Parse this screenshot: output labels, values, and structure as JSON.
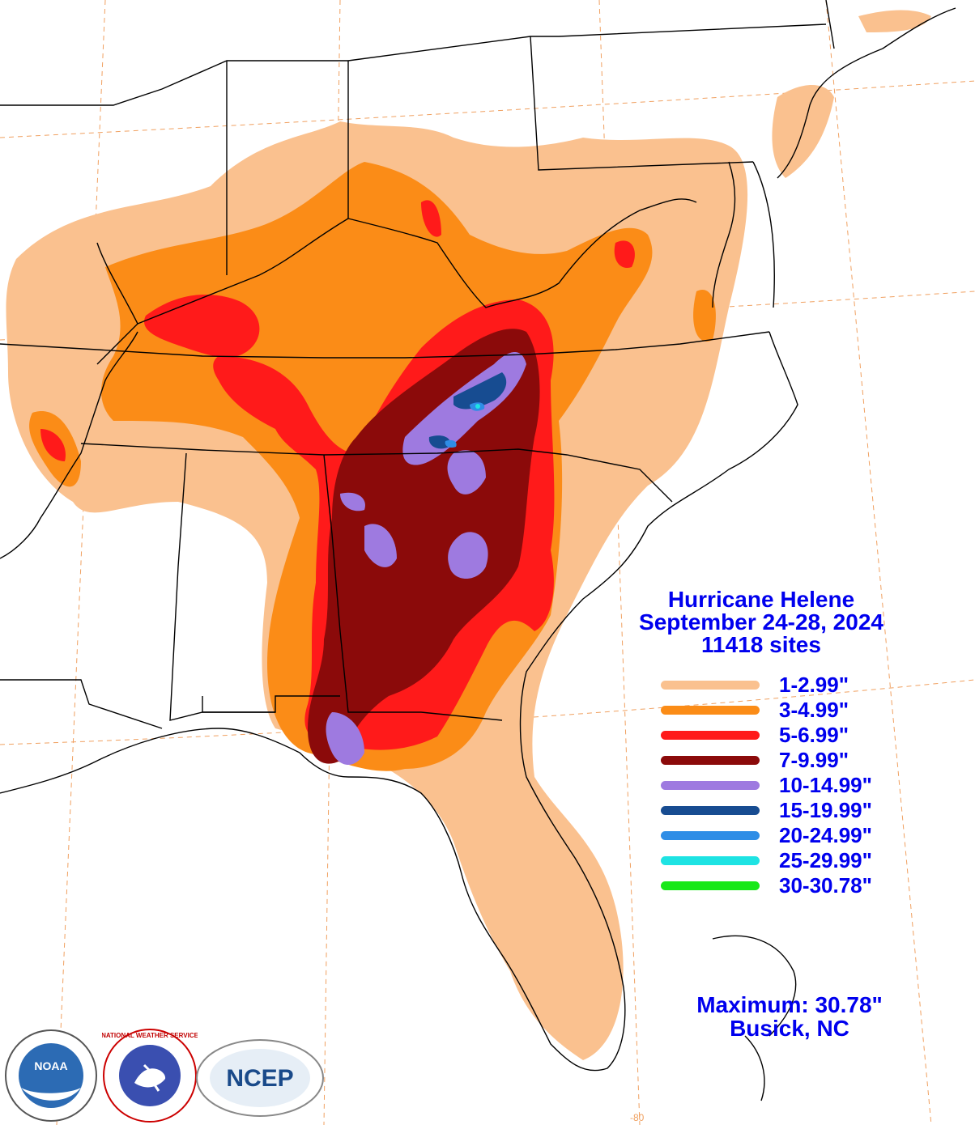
{
  "title": {
    "line1": "Hurricane Helene",
    "line2": "September 24-28, 2024",
    "line3": "11418 sites"
  },
  "legend": [
    {
      "label": "1-2.99\"",
      "color": "#fac18f"
    },
    {
      "label": "3-4.99\"",
      "color": "#fb8c17"
    },
    {
      "label": "5-6.99\"",
      "color": "#ff1a1a"
    },
    {
      "label": "7-9.99\"",
      "color": "#8b0a0a"
    },
    {
      "label": "10-14.99\"",
      "color": "#9e7ae0"
    },
    {
      "label": "15-19.99\"",
      "color": "#174c91"
    },
    {
      "label": "20-24.99\"",
      "color": "#2e8de6"
    },
    {
      "label": "25-29.99\"",
      "color": "#1ee3e3"
    },
    {
      "label": "30-30.78\"",
      "color": "#18e818"
    }
  ],
  "maximum": {
    "line1": "Maximum:  30.78\"",
    "line2": "Busick, NC"
  },
  "grid_label": "-80",
  "logos": {
    "noaa": "NOAA",
    "nws": "NATIONAL WEATHER SERVICE",
    "ncep": "NCEP"
  }
}
